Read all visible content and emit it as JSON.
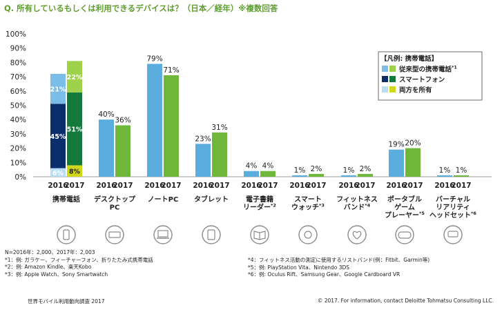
{
  "title": "Q. 所有しているもしくは利用できるデバイスは？（日本／経年）※複数回答",
  "colors": {
    "feature_2016": "#79bde8",
    "feature_2017": "#9ed24a",
    "smart_2016": "#0b2d6b",
    "smart_2017": "#137a3b",
    "both_2016": "#b8def5",
    "both_2017": "#cfd81a",
    "blue": "#5badde",
    "green": "#6eb73a"
  },
  "chart_data": {
    "type": "bar",
    "yticks": [
      "100%",
      "90%",
      "80%",
      "70%",
      "60%",
      "50%",
      "40%",
      "30%",
      "20%",
      "10%",
      "0%"
    ],
    "ylim": [
      0,
      100
    ],
    "years": [
      "2016",
      "2017"
    ],
    "categories": [
      {
        "lines": [
          "携帯電話"
        ],
        "icon": "mobile-phone-icon"
      },
      {
        "lines": [
          "デスクトップ",
          "PC"
        ],
        "icon": "keyboard-icon"
      },
      {
        "lines": [
          "ノートPC"
        ],
        "icon": "laptop-icon"
      },
      {
        "lines": [
          "タブレット"
        ],
        "icon": "tablet-icon"
      },
      {
        "lines": [
          "電子書籍",
          "リーダー*2"
        ],
        "icon": "book-icon"
      },
      {
        "lines": [
          "スマート",
          "ウォッチ*3"
        ],
        "icon": "watch-icon"
      },
      {
        "lines": [
          "フィットネス",
          "バンド*4"
        ],
        "icon": "heart-icon"
      },
      {
        "lines": [
          "ポータブル",
          "ゲーム",
          "プレーヤー*5"
        ],
        "icon": "game-console-icon"
      },
      {
        "lines": [
          "バーチャル",
          "リアリティ",
          "ヘッドセット*6"
        ],
        "icon": "vr-headset-icon"
      }
    ],
    "stacked_phone": {
      "2016": [
        {
          "part": "both",
          "value": 6,
          "label": "6%"
        },
        {
          "part": "smart",
          "value": 45,
          "label": "45%"
        },
        {
          "part": "feature",
          "value": 21,
          "label": "21%"
        }
      ],
      "2017": [
        {
          "part": "both",
          "value": 8,
          "label": "8%"
        },
        {
          "part": "smart",
          "value": 51,
          "label": "51%"
        },
        {
          "part": "feature",
          "value": 22,
          "label": "22%"
        }
      ]
    },
    "series": [
      {
        "year": "2016",
        "values": [
          null,
          40,
          79,
          23,
          4,
          1,
          1,
          19,
          1
        ],
        "labels": [
          "",
          "40%",
          "79%",
          "23%",
          "4%",
          "1%",
          "1%",
          "19%",
          "1%"
        ]
      },
      {
        "year": "2017",
        "values": [
          null,
          36,
          71,
          31,
          4,
          2,
          2,
          20,
          1
        ],
        "labels": [
          "",
          "36%",
          "71%",
          "31%",
          "4%",
          "2%",
          "2%",
          "20%",
          "1%"
        ]
      }
    ],
    "legend": {
      "title": "【凡例: 携帯電話】",
      "items": [
        {
          "label": "従来型の携帯電話",
          "sup": "*1",
          "part": "feature"
        },
        {
          "label": "スマートフォン",
          "sup": "",
          "part": "smart"
        },
        {
          "label": "両方を所有",
          "sup": "",
          "part": "both"
        }
      ]
    }
  },
  "notes_left": [
    "N=2016年：2,000、2017年：2,003",
    "*1：例: ガラケー、フィーチャーフォン、折りたたみ式携帯電話",
    "*2：例: Amazon Kindle、楽天Kobo",
    "*3：例: Apple Watch、Sony Smartwatch"
  ],
  "notes_right": [
    "*4：フィットネス活動の測定に使用するリストバンド(例：Fitbit、Garmin等)",
    "*5：例: PlayStation Vita、Nintendo 3DS",
    "*6：例: Oculus Rift、Samsung Gear、Google Cardboard VR"
  ],
  "footer": {
    "source": "世界モバイル利用動向調査 2017",
    "copyright": "© 2017. For information, contact Deloitte Tohmatsu Consulting LLC."
  }
}
